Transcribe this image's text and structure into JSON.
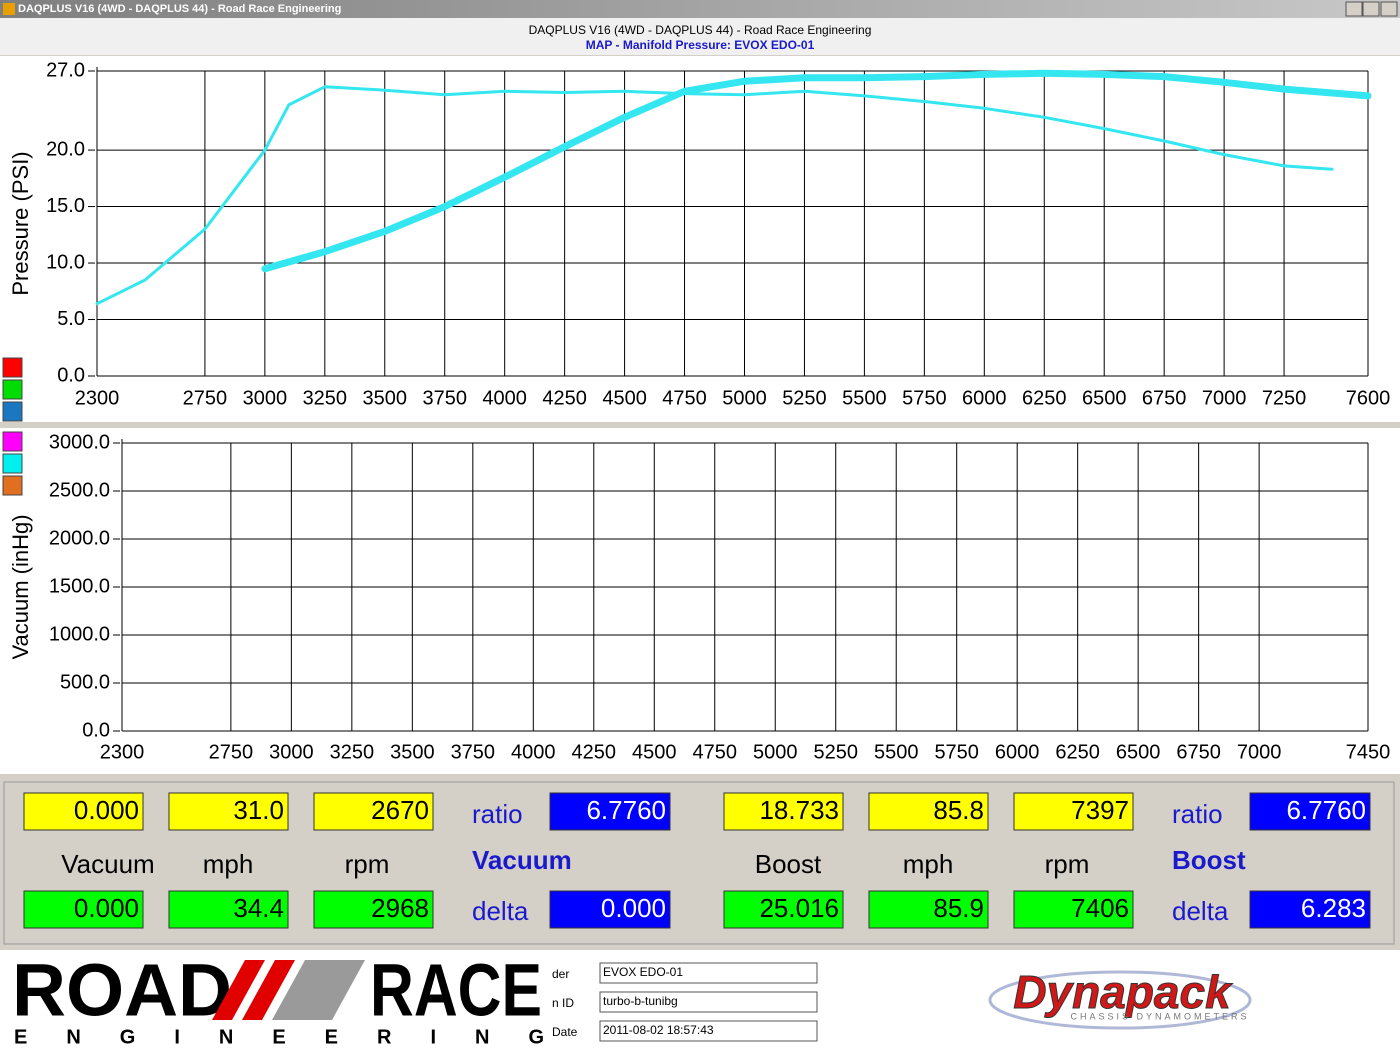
{
  "window": {
    "title": "DAQPLUS V16 (4WD - DAQPLUS 44) - Road Race Engineering"
  },
  "header": {
    "title": "DAQPLUS V16 (4WD - DAQPLUS 44) - Road Race Engineering",
    "subtitle": "MAP - Manifold Pressure: EVOX EDO-01"
  },
  "chart_data": [
    {
      "type": "line",
      "y_label": "Pressure (PSI)",
      "xlim": [
        2300,
        7600
      ],
      "ylim": [
        0,
        27
      ],
      "xticks": [
        2300,
        2750,
        3000,
        3250,
        3500,
        3750,
        4000,
        4250,
        4500,
        4750,
        5000,
        5250,
        5500,
        5750,
        6000,
        6250,
        6500,
        6750,
        7000,
        7250,
        7600
      ],
      "yticks": [
        {
          "value": 0,
          "label": "0.0"
        },
        {
          "value": 5,
          "label": "5.0"
        },
        {
          "value": 10,
          "label": "10.0"
        },
        {
          "value": 15,
          "label": "15.0"
        },
        {
          "value": 20,
          "label": "20.0"
        },
        {
          "value": 27,
          "label": "27.0"
        }
      ],
      "grid": true,
      "series": [
        {
          "color": "#33e6f0",
          "width": 3,
          "x": [
            2300,
            2500,
            2750,
            3000,
            3100,
            3250,
            3500,
            3750,
            4000,
            4250,
            4500,
            4750,
            5000,
            5250,
            5500,
            5750,
            6000,
            6250,
            6500,
            6750,
            7000,
            7250,
            7450
          ],
          "values": [
            6.4,
            8.5,
            13,
            20,
            24,
            25.6,
            25.3,
            24.9,
            25.2,
            25.1,
            25.2,
            25.0,
            24.9,
            25.2,
            24.8,
            24.3,
            23.7,
            22.9,
            21.9,
            20.8,
            19.6,
            18.6,
            18.3
          ]
        },
        {
          "color": "#33e6f0",
          "width": 7,
          "x": [
            3000,
            3250,
            3500,
            3750,
            4000,
            4250,
            4500,
            4750,
            5000,
            5250,
            5500,
            5750,
            6000,
            6250,
            6500,
            6750,
            7000,
            7250,
            7600
          ],
          "values": [
            9.5,
            11,
            12.8,
            15,
            17.6,
            20.3,
            22.9,
            25.2,
            26.1,
            26.4,
            26.4,
            26.5,
            26.7,
            26.8,
            26.7,
            26.5,
            26.0,
            25.4,
            24.8
          ]
        }
      ]
    },
    {
      "type": "line",
      "y_label": "Vacuum (inHg)",
      "xlim": [
        2300,
        7450
      ],
      "ylim": [
        0,
        3000
      ],
      "xticks": [
        2300,
        2750,
        3000,
        3250,
        3500,
        3750,
        4000,
        4250,
        4500,
        4750,
        5000,
        5250,
        5500,
        5750,
        6000,
        6250,
        6500,
        6750,
        7000,
        7450
      ],
      "yticks": [
        {
          "value": 0,
          "label": "0.0"
        },
        {
          "value": 500,
          "label": "500.0"
        },
        {
          "value": 1000,
          "label": "1000.0"
        },
        {
          "value": 1500,
          "label": "1500.0"
        },
        {
          "value": 2000,
          "label": "2000.0"
        },
        {
          "value": 2500,
          "label": "2500.0"
        },
        {
          "value": 3000,
          "label": "3000.0"
        }
      ],
      "grid": true,
      "series": []
    }
  ],
  "readouts": {
    "vacuum": {
      "top": [
        "0.000",
        "31.0",
        "2670"
      ],
      "labels": [
        "Vacuum",
        "mph",
        "rpm"
      ],
      "bottom": [
        "0.000",
        "34.4",
        "2968"
      ],
      "ratio_label": "ratio",
      "ratio": "6.7760",
      "name": "Vacuum",
      "delta_label": "delta",
      "delta": "0.000"
    },
    "boost": {
      "top": [
        "18.733",
        "85.8",
        "7397"
      ],
      "labels": [
        "Boost",
        "mph",
        "rpm"
      ],
      "bottom": [
        "25.016",
        "85.9",
        "7406"
      ],
      "ratio_label": "ratio",
      "ratio": "6.7760",
      "name": "Boost",
      "delta_label": "delta",
      "delta": "6.283"
    }
  },
  "footer": {
    "logo": {
      "word1": "ROAD",
      "word2": "RACE",
      "word3": "E N G I N E E R I N G"
    },
    "fields": [
      [
        "der",
        "EVOX EDO-01"
      ],
      [
        "n ID",
        "turbo-b-tunibg"
      ],
      [
        "Date",
        "2011-08-02 18:57:43"
      ]
    ],
    "brand": {
      "name": "Dynapack",
      "tagline": "CHASSIS DYNAMOMETERS"
    }
  }
}
